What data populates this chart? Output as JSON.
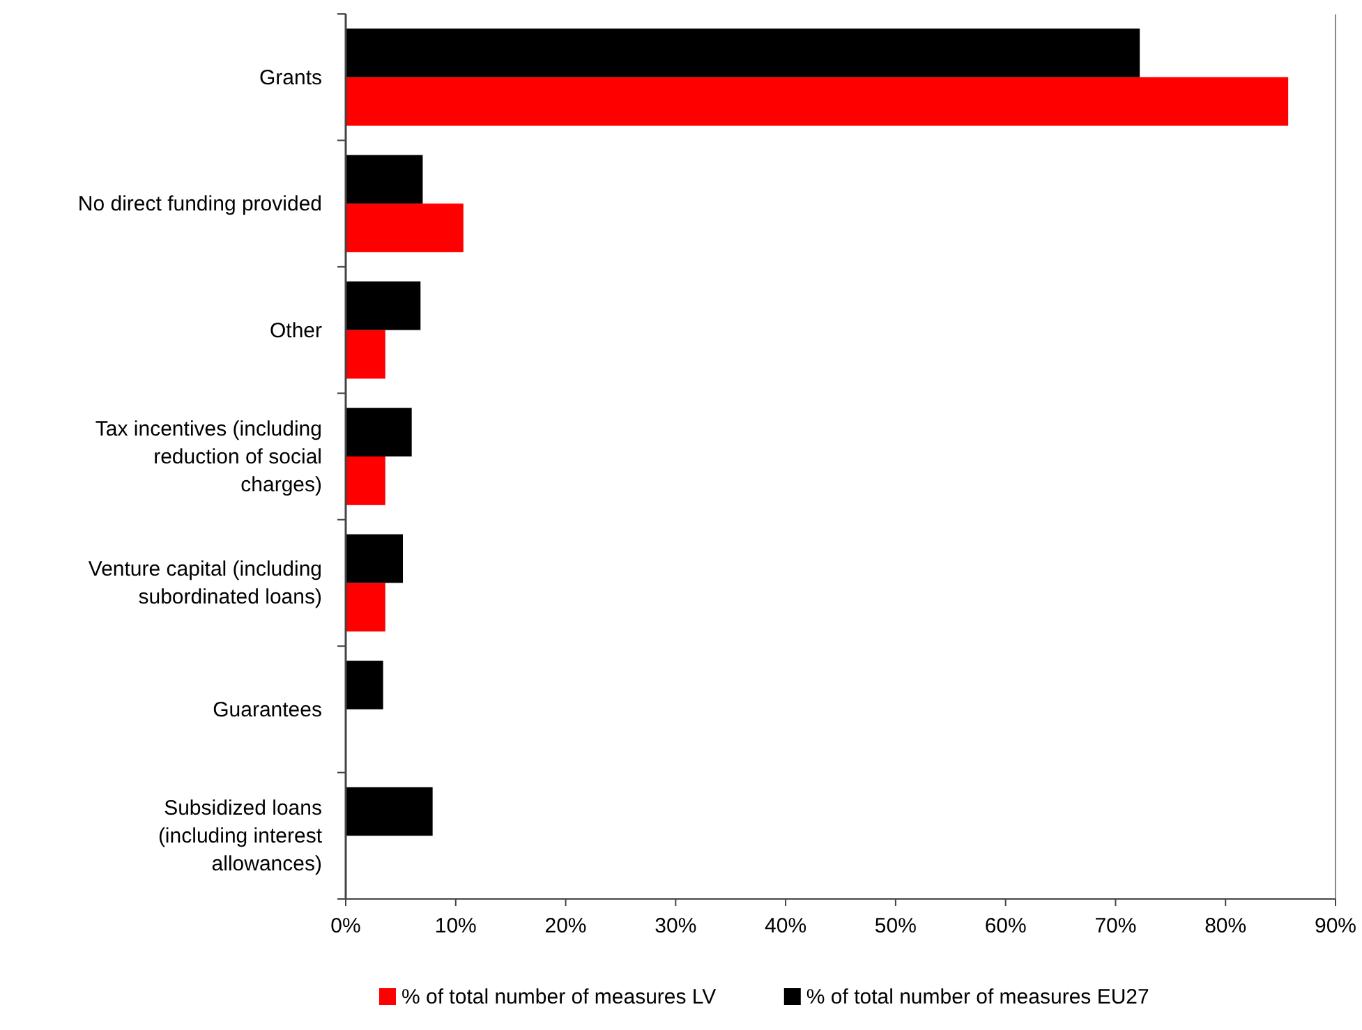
{
  "chart_data": {
    "type": "bar",
    "orientation": "horizontal",
    "categories": [
      "Grants",
      "No direct funding provided",
      "Other",
      "Tax incentives (including reduction of social charges)",
      "Venture capital (including subordinated loans)",
      "Guarantees",
      "Subsidized loans (including interest allowances)"
    ],
    "series": [
      {
        "name": "% of total number of measures LV",
        "color": "#ff0000",
        "values": [
          85.7,
          10.7,
          3.6,
          3.6,
          3.6,
          0,
          0
        ]
      },
      {
        "name": "% of total number of measures EU27",
        "color": "#000000",
        "values": [
          72.2,
          7.0,
          6.8,
          6.0,
          5.2,
          3.4,
          7.9
        ]
      }
    ],
    "xlim": [
      0,
      90
    ],
    "xticks": [
      {
        "value": 0,
        "label": "0%"
      },
      {
        "value": 10,
        "label": "10%"
      },
      {
        "value": 20,
        "label": "20%"
      },
      {
        "value": 30,
        "label": "30%"
      },
      {
        "value": 40,
        "label": "40%"
      },
      {
        "value": 50,
        "label": "50%"
      },
      {
        "value": 60,
        "label": "60%"
      },
      {
        "value": 70,
        "label": "70%"
      },
      {
        "value": 80,
        "label": "80%"
      },
      {
        "value": 90,
        "label": "90%"
      }
    ],
    "grid": false,
    "legend": "bottom"
  }
}
